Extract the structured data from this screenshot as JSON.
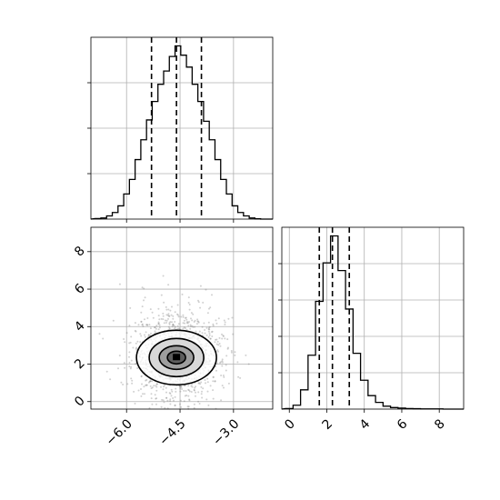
{
  "chart_data": [
    {
      "type": "histogram",
      "panel": "marginal-x",
      "bins": [
        [
          -6.88,
          2
        ],
        [
          -6.72,
          4
        ],
        [
          -6.56,
          12
        ],
        [
          -6.4,
          25
        ],
        [
          -6.24,
          50
        ],
        [
          -6.08,
          95
        ],
        [
          -5.92,
          150
        ],
        [
          -5.76,
          225
        ],
        [
          -5.6,
          300
        ],
        [
          -5.44,
          375
        ],
        [
          -5.28,
          445
        ],
        [
          -5.12,
          510
        ],
        [
          -4.96,
          560
        ],
        [
          -4.8,
          615
        ],
        [
          -4.64,
          655
        ],
        [
          -4.48,
          620
        ],
        [
          -4.32,
          575
        ],
        [
          -4.16,
          510
        ],
        [
          -4.0,
          445
        ],
        [
          -3.84,
          370
        ],
        [
          -3.68,
          300
        ],
        [
          -3.52,
          225
        ],
        [
          -3.36,
          150
        ],
        [
          -3.2,
          95
        ],
        [
          -3.04,
          50
        ],
        [
          -2.88,
          25
        ],
        [
          -2.72,
          12
        ],
        [
          -2.56,
          4
        ],
        [
          -2.4,
          1
        ]
      ],
      "bin_width": 0.16,
      "quantiles": [
        -5.3,
        -4.6,
        -3.9
      ],
      "xlim": [
        -7.0,
        -1.9
      ],
      "grid": true
    },
    {
      "type": "scatter",
      "panel": "joint",
      "center": [
        -4.6,
        2.4
      ],
      "spread": [
        0.62,
        1.05
      ],
      "contour_levels": 4,
      "xlim": [
        -7.0,
        -1.9
      ],
      "ylim": [
        -0.4,
        9.3
      ],
      "x_ticks": [
        "−6.0",
        "−4.5",
        "−3.0"
      ],
      "x_tick_values": [
        -6.0,
        -4.5,
        -3.0
      ],
      "y_ticks": [
        "0",
        "2",
        "4",
        "6",
        "8"
      ],
      "y_tick_values": [
        0,
        2,
        4,
        6,
        8
      ],
      "grid": true
    },
    {
      "type": "histogram",
      "panel": "marginal-y",
      "bins": [
        [
          -0.2,
          3
        ],
        [
          0.2,
          20
        ],
        [
          0.6,
          100
        ],
        [
          1.0,
          280
        ],
        [
          1.4,
          560
        ],
        [
          1.8,
          760
        ],
        [
          2.2,
          900
        ],
        [
          2.6,
          720
        ],
        [
          3.0,
          520
        ],
        [
          3.4,
          290
        ],
        [
          3.8,
          150
        ],
        [
          4.2,
          70
        ],
        [
          4.6,
          35
        ],
        [
          5.0,
          15
        ],
        [
          5.4,
          8
        ],
        [
          5.8,
          5
        ],
        [
          6.2,
          3
        ],
        [
          6.6,
          2
        ],
        [
          7.0,
          1
        ],
        [
          7.4,
          1
        ],
        [
          7.8,
          1
        ]
      ],
      "bin_width": 0.4,
      "quantiles": [
        1.6,
        2.3,
        3.2
      ],
      "xlim": [
        -0.4,
        9.3
      ],
      "x_ticks": [
        "0",
        "2",
        "4",
        "6",
        "8"
      ],
      "x_tick_values": [
        0,
        2,
        4,
        6,
        8
      ],
      "grid": true
    }
  ]
}
